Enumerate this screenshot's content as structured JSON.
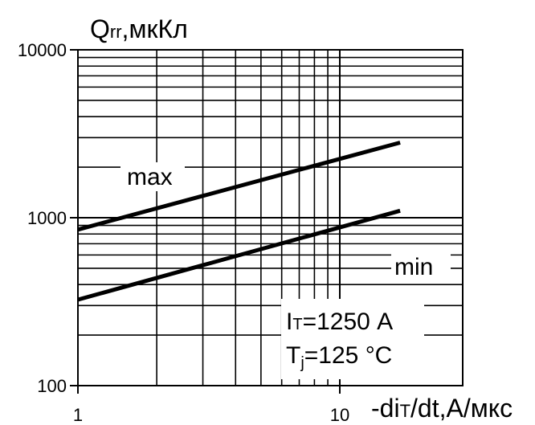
{
  "chart_data": {
    "type": "line",
    "xscale": "log",
    "yscale": "log",
    "xlim": [
      1,
      17
    ],
    "ylim": [
      100,
      10000
    ],
    "grid": true,
    "ylabel_main": "Q",
    "ylabel_sub": "rr",
    "ylabel_unit": ",мкКл",
    "xlabel_pre": "-di",
    "xlabel_sub": "T",
    "xlabel_post": "/dt,А/мкс",
    "xticks": [
      {
        "value": 1,
        "label": "1"
      },
      {
        "value": 10,
        "label": "10"
      }
    ],
    "yticks": [
      {
        "value": 100,
        "label": "100"
      },
      {
        "value": 1000,
        "label": "1000"
      },
      {
        "value": 10000,
        "label": "10000"
      }
    ],
    "series": [
      {
        "name": "max",
        "x": [
          1,
          17
        ],
        "y": [
          850,
          2800
        ]
      },
      {
        "name": "min",
        "x": [
          1,
          17
        ],
        "y": [
          325,
          1100
        ]
      }
    ],
    "annotations": {
      "current_pre": "I",
      "current_sub": "T",
      "current_post": "=1250 А",
      "temp_pre": "T",
      "temp_sub": "j",
      "temp_post": "=125 °C"
    },
    "colors": {
      "line": "#000000",
      "grid": "#000000",
      "background": "#ffffff"
    }
  }
}
